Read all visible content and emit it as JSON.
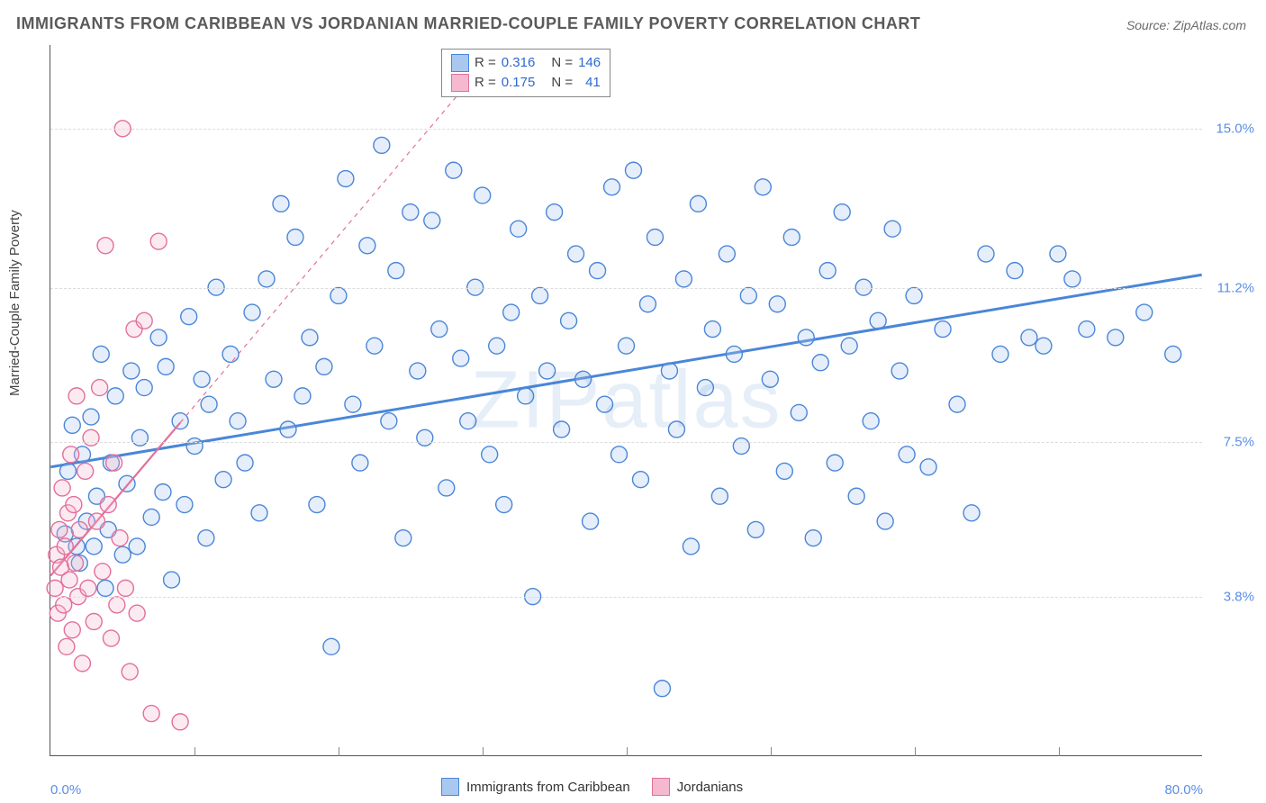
{
  "title": "IMMIGRANTS FROM CARIBBEAN VS JORDANIAN MARRIED-COUPLE FAMILY POVERTY CORRELATION CHART",
  "source": "Source: ZipAtlas.com",
  "watermark": "ZIPatlas",
  "ylabel": "Married-Couple Family Poverty",
  "chart": {
    "type": "scatter",
    "xlim": [
      0,
      80
    ],
    "ylim": [
      0,
      17
    ],
    "x_axis_label_min": "0.0%",
    "x_axis_label_max": "80.0%",
    "x_gridlines": [
      10,
      20,
      30,
      40,
      50,
      60,
      70
    ],
    "y_gridlines": [
      {
        "value": 3.8,
        "label": "3.8%"
      },
      {
        "value": 7.5,
        "label": "7.5%"
      },
      {
        "value": 11.2,
        "label": "11.2%"
      },
      {
        "value": 15.0,
        "label": "15.0%"
      }
    ],
    "background_color": "#ffffff",
    "grid_color": "#dcdcdc",
    "axis_color": "#555555",
    "marker_radius": 9,
    "marker_stroke_width": 1.4,
    "marker_fill_opacity": 0.3,
    "series": [
      {
        "name": "Immigrants from Caribbean",
        "color_stroke": "#4a86d8",
        "color_fill": "#a9c8ef",
        "R": "0.316",
        "N": "146",
        "trend": {
          "x1": 0,
          "y1": 6.9,
          "x2": 80,
          "y2": 11.5,
          "solid_until_x": 80,
          "stroke_width": 3
        },
        "points": [
          [
            1,
            5.3
          ],
          [
            1.2,
            6.8
          ],
          [
            1.5,
            7.9
          ],
          [
            1.8,
            5.0
          ],
          [
            2,
            4.6
          ],
          [
            2.2,
            7.2
          ],
          [
            2.5,
            5.6
          ],
          [
            2.8,
            8.1
          ],
          [
            3,
            5.0
          ],
          [
            3.2,
            6.2
          ],
          [
            3.5,
            9.6
          ],
          [
            3.8,
            4.0
          ],
          [
            4,
            5.4
          ],
          [
            4.2,
            7.0
          ],
          [
            4.5,
            8.6
          ],
          [
            5,
            4.8
          ],
          [
            5.3,
            6.5
          ],
          [
            5.6,
            9.2
          ],
          [
            6,
            5.0
          ],
          [
            6.2,
            7.6
          ],
          [
            6.5,
            8.8
          ],
          [
            7,
            5.7
          ],
          [
            7.5,
            10.0
          ],
          [
            7.8,
            6.3
          ],
          [
            8,
            9.3
          ],
          [
            8.4,
            4.2
          ],
          [
            9,
            8.0
          ],
          [
            9.3,
            6.0
          ],
          [
            9.6,
            10.5
          ],
          [
            10,
            7.4
          ],
          [
            10.5,
            9.0
          ],
          [
            10.8,
            5.2
          ],
          [
            11,
            8.4
          ],
          [
            11.5,
            11.2
          ],
          [
            12,
            6.6
          ],
          [
            12.5,
            9.6
          ],
          [
            13,
            8.0
          ],
          [
            13.5,
            7.0
          ],
          [
            14,
            10.6
          ],
          [
            14.5,
            5.8
          ],
          [
            15,
            11.4
          ],
          [
            15.5,
            9.0
          ],
          [
            16,
            13.2
          ],
          [
            16.5,
            7.8
          ],
          [
            17,
            12.4
          ],
          [
            17.5,
            8.6
          ],
          [
            18,
            10.0
          ],
          [
            18.5,
            6.0
          ],
          [
            19,
            9.3
          ],
          [
            19.5,
            2.6
          ],
          [
            20,
            11.0
          ],
          [
            20.5,
            13.8
          ],
          [
            21,
            8.4
          ],
          [
            21.5,
            7.0
          ],
          [
            22,
            12.2
          ],
          [
            22.5,
            9.8
          ],
          [
            23,
            14.6
          ],
          [
            23.5,
            8.0
          ],
          [
            24,
            11.6
          ],
          [
            24.5,
            5.2
          ],
          [
            25,
            13.0
          ],
          [
            25.5,
            9.2
          ],
          [
            26,
            7.6
          ],
          [
            26.5,
            12.8
          ],
          [
            27,
            10.2
          ],
          [
            27.5,
            6.4
          ],
          [
            28,
            14.0
          ],
          [
            28.5,
            9.5
          ],
          [
            29,
            8.0
          ],
          [
            29.5,
            11.2
          ],
          [
            30,
            13.4
          ],
          [
            30.5,
            7.2
          ],
          [
            31,
            9.8
          ],
          [
            31.5,
            6.0
          ],
          [
            32,
            10.6
          ],
          [
            32.5,
            12.6
          ],
          [
            33,
            8.6
          ],
          [
            33.5,
            3.8
          ],
          [
            34,
            11.0
          ],
          [
            34.5,
            9.2
          ],
          [
            35,
            13.0
          ],
          [
            35.5,
            7.8
          ],
          [
            36,
            10.4
          ],
          [
            36.5,
            12.0
          ],
          [
            37,
            9.0
          ],
          [
            37.5,
            5.6
          ],
          [
            38,
            11.6
          ],
          [
            38.5,
            8.4
          ],
          [
            39,
            13.6
          ],
          [
            39.5,
            7.2
          ],
          [
            40,
            9.8
          ],
          [
            40.5,
            14.0
          ],
          [
            41,
            6.6
          ],
          [
            41.5,
            10.8
          ],
          [
            42,
            12.4
          ],
          [
            42.5,
            1.6
          ],
          [
            43,
            9.2
          ],
          [
            43.5,
            7.8
          ],
          [
            44,
            11.4
          ],
          [
            44.5,
            5.0
          ],
          [
            45,
            13.2
          ],
          [
            45.5,
            8.8
          ],
          [
            46,
            10.2
          ],
          [
            46.5,
            6.2
          ],
          [
            47,
            12.0
          ],
          [
            47.5,
            9.6
          ],
          [
            48,
            7.4
          ],
          [
            48.5,
            11.0
          ],
          [
            49,
            5.4
          ],
          [
            49.5,
            13.6
          ],
          [
            50,
            9.0
          ],
          [
            50.5,
            10.8
          ],
          [
            51,
            6.8
          ],
          [
            51.5,
            12.4
          ],
          [
            52,
            8.2
          ],
          [
            52.5,
            10.0
          ],
          [
            53,
            5.2
          ],
          [
            53.5,
            9.4
          ],
          [
            54,
            11.6
          ],
          [
            54.5,
            7.0
          ],
          [
            55,
            13.0
          ],
          [
            55.5,
            9.8
          ],
          [
            56,
            6.2
          ],
          [
            56.5,
            11.2
          ],
          [
            57,
            8.0
          ],
          [
            57.5,
            10.4
          ],
          [
            58,
            5.6
          ],
          [
            58.5,
            12.6
          ],
          [
            59,
            9.2
          ],
          [
            59.5,
            7.2
          ],
          [
            60,
            11.0
          ],
          [
            61,
            6.9
          ],
          [
            62,
            10.2
          ],
          [
            63,
            8.4
          ],
          [
            64,
            5.8
          ],
          [
            65,
            12.0
          ],
          [
            66,
            9.6
          ],
          [
            67,
            11.6
          ],
          [
            68,
            10.0
          ],
          [
            69,
            9.8
          ],
          [
            70,
            12.0
          ],
          [
            71,
            11.4
          ],
          [
            72,
            10.2
          ],
          [
            74,
            10.0
          ],
          [
            76,
            10.6
          ],
          [
            78,
            9.6
          ]
        ]
      },
      {
        "name": "Jordanians",
        "color_stroke": "#e36f9b",
        "color_fill": "#f4b9cf",
        "R": "0.175",
        "N": "41",
        "trend": {
          "x1": 0,
          "y1": 4.3,
          "x2": 30,
          "y2": 16.5,
          "solid_until_x": 9,
          "stroke_width": 2.2
        },
        "points": [
          [
            0.3,
            4.0
          ],
          [
            0.4,
            4.8
          ],
          [
            0.5,
            3.4
          ],
          [
            0.6,
            5.4
          ],
          [
            0.7,
            4.5
          ],
          [
            0.8,
            6.4
          ],
          [
            0.9,
            3.6
          ],
          [
            1.0,
            5.0
          ],
          [
            1.1,
            2.6
          ],
          [
            1.2,
            5.8
          ],
          [
            1.3,
            4.2
          ],
          [
            1.4,
            7.2
          ],
          [
            1.5,
            3.0
          ],
          [
            1.6,
            6.0
          ],
          [
            1.7,
            4.6
          ],
          [
            1.8,
            8.6
          ],
          [
            1.9,
            3.8
          ],
          [
            2.0,
            5.4
          ],
          [
            2.2,
            2.2
          ],
          [
            2.4,
            6.8
          ],
          [
            2.6,
            4.0
          ],
          [
            2.8,
            7.6
          ],
          [
            3.0,
            3.2
          ],
          [
            3.2,
            5.6
          ],
          [
            3.4,
            8.8
          ],
          [
            3.6,
            4.4
          ],
          [
            3.8,
            12.2
          ],
          [
            4.0,
            6.0
          ],
          [
            4.2,
            2.8
          ],
          [
            4.4,
            7.0
          ],
          [
            4.6,
            3.6
          ],
          [
            4.8,
            5.2
          ],
          [
            5.0,
            15.0
          ],
          [
            5.2,
            4.0
          ],
          [
            5.5,
            2.0
          ],
          [
            5.8,
            10.2
          ],
          [
            6.0,
            3.4
          ],
          [
            6.5,
            10.4
          ],
          [
            7.0,
            1.0
          ],
          [
            7.5,
            12.3
          ],
          [
            9.0,
            0.8
          ]
        ]
      }
    ]
  },
  "legend_top": {
    "r_label": "R =",
    "n_label": "N ="
  },
  "legend_bottom": {
    "series1": "Immigrants from Caribbean",
    "series2": "Jordanians"
  }
}
